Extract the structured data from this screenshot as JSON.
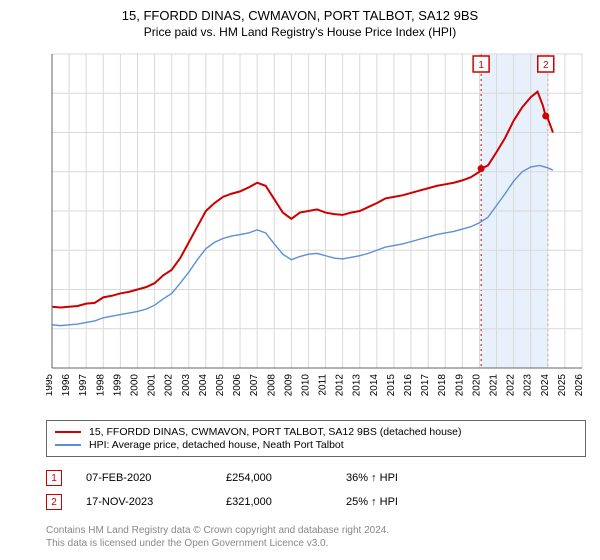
{
  "header": {
    "title": "15, FFORDD DINAS, CWMAVON, PORT TALBOT, SA12 9BS",
    "subtitle": "Price paid vs. HM Land Registry's House Price Index (HPI)"
  },
  "chart": {
    "type": "line",
    "background_color": "#ffffff",
    "grid_color": "#d9d9d9",
    "axis_color": "#666666",
    "font_size_axis": 10,
    "y_axis": {
      "min": 0,
      "max": 400000,
      "tick_step": 50000,
      "label_prefix": "£",
      "label_suffix": "K"
    },
    "x_axis": {
      "min": 1995,
      "max": 2026,
      "tick_step": 1
    },
    "highlight_band": {
      "x_start": 2020.1,
      "x_end": 2024.0,
      "fill": "#e8f0fb",
      "dash_color": "#cc0000"
    },
    "markers": [
      {
        "id": "1",
        "x": 2020.1,
        "y": 254000,
        "label": "1"
      },
      {
        "id": "2",
        "x": 2023.88,
        "y": 321000,
        "label": "2"
      }
    ],
    "marker_badge_border": "#cc0000",
    "marker_badge_text": "#cc0000",
    "series": [
      {
        "name": "price_paid",
        "color": "#cc0000",
        "line_width": 2,
        "data": [
          [
            1995,
            78000
          ],
          [
            1995.5,
            77000
          ],
          [
            1996,
            78000
          ],
          [
            1996.5,
            79000
          ],
          [
            1997,
            82000
          ],
          [
            1997.5,
            83000
          ],
          [
            1998,
            90000
          ],
          [
            1998.5,
            92000
          ],
          [
            1999,
            95000
          ],
          [
            1999.5,
            97000
          ],
          [
            2000,
            100000
          ],
          [
            2000.5,
            103000
          ],
          [
            2001,
            108000
          ],
          [
            2001.5,
            118000
          ],
          [
            2002,
            125000
          ],
          [
            2002.5,
            140000
          ],
          [
            2003,
            160000
          ],
          [
            2003.5,
            180000
          ],
          [
            2004,
            200000
          ],
          [
            2004.5,
            210000
          ],
          [
            2005,
            218000
          ],
          [
            2005.5,
            222000
          ],
          [
            2006,
            225000
          ],
          [
            2006.5,
            230000
          ],
          [
            2007,
            236000
          ],
          [
            2007.5,
            232000
          ],
          [
            2008,
            215000
          ],
          [
            2008.5,
            198000
          ],
          [
            2009,
            190000
          ],
          [
            2009.5,
            198000
          ],
          [
            2010,
            200000
          ],
          [
            2010.5,
            202000
          ],
          [
            2011,
            198000
          ],
          [
            2011.5,
            196000
          ],
          [
            2012,
            195000
          ],
          [
            2012.5,
            198000
          ],
          [
            2013,
            200000
          ],
          [
            2013.5,
            205000
          ],
          [
            2014,
            210000
          ],
          [
            2014.5,
            216000
          ],
          [
            2015,
            218000
          ],
          [
            2015.5,
            220000
          ],
          [
            2016,
            223000
          ],
          [
            2016.5,
            226000
          ],
          [
            2017,
            229000
          ],
          [
            2017.5,
            232000
          ],
          [
            2018,
            234000
          ],
          [
            2018.5,
            236000
          ],
          [
            2019,
            239000
          ],
          [
            2019.5,
            243000
          ],
          [
            2020,
            250000
          ],
          [
            2020.1,
            254000
          ],
          [
            2020.5,
            258000
          ],
          [
            2021,
            275000
          ],
          [
            2021.5,
            293000
          ],
          [
            2022,
            315000
          ],
          [
            2022.5,
            332000
          ],
          [
            2023,
            345000
          ],
          [
            2023.4,
            352000
          ],
          [
            2023.7,
            335000
          ],
          [
            2023.88,
            321000
          ],
          [
            2024,
            318000
          ],
          [
            2024.3,
            300000
          ]
        ]
      },
      {
        "name": "hpi",
        "color": "#5b8fd6",
        "line_width": 1.4,
        "data": [
          [
            1995,
            55000
          ],
          [
            1995.5,
            54000
          ],
          [
            1996,
            55000
          ],
          [
            1996.5,
            56000
          ],
          [
            1997,
            58000
          ],
          [
            1997.5,
            60000
          ],
          [
            1998,
            64000
          ],
          [
            1998.5,
            66000
          ],
          [
            1999,
            68000
          ],
          [
            1999.5,
            70000
          ],
          [
            2000,
            72000
          ],
          [
            2000.5,
            75000
          ],
          [
            2001,
            80000
          ],
          [
            2001.5,
            88000
          ],
          [
            2002,
            95000
          ],
          [
            2002.5,
            108000
          ],
          [
            2003,
            122000
          ],
          [
            2003.5,
            138000
          ],
          [
            2004,
            152000
          ],
          [
            2004.5,
            160000
          ],
          [
            2005,
            165000
          ],
          [
            2005.5,
            168000
          ],
          [
            2006,
            170000
          ],
          [
            2006.5,
            172000
          ],
          [
            2007,
            176000
          ],
          [
            2007.5,
            172000
          ],
          [
            2008,
            158000
          ],
          [
            2008.5,
            145000
          ],
          [
            2009,
            138000
          ],
          [
            2009.5,
            142000
          ],
          [
            2010,
            145000
          ],
          [
            2010.5,
            146000
          ],
          [
            2011,
            143000
          ],
          [
            2011.5,
            140000
          ],
          [
            2012,
            139000
          ],
          [
            2012.5,
            141000
          ],
          [
            2013,
            143000
          ],
          [
            2013.5,
            146000
          ],
          [
            2014,
            150000
          ],
          [
            2014.5,
            154000
          ],
          [
            2015,
            156000
          ],
          [
            2015.5,
            158000
          ],
          [
            2016,
            161000
          ],
          [
            2016.5,
            164000
          ],
          [
            2017,
            167000
          ],
          [
            2017.5,
            170000
          ],
          [
            2018,
            172000
          ],
          [
            2018.5,
            174000
          ],
          [
            2019,
            177000
          ],
          [
            2019.5,
            180000
          ],
          [
            2020,
            185000
          ],
          [
            2020.5,
            192000
          ],
          [
            2021,
            207000
          ],
          [
            2021.5,
            222000
          ],
          [
            2022,
            238000
          ],
          [
            2022.5,
            250000
          ],
          [
            2023,
            256000
          ],
          [
            2023.5,
            258000
          ],
          [
            2024,
            255000
          ],
          [
            2024.3,
            252000
          ]
        ]
      }
    ]
  },
  "legend": {
    "items": [
      {
        "color": "#cc0000",
        "label": "15, FFORDD DINAS, CWMAVON, PORT TALBOT, SA12 9BS (detached house)"
      },
      {
        "color": "#5b8fd6",
        "label": "HPI: Average price, detached house, Neath Port Talbot"
      }
    ]
  },
  "marker_rows": [
    {
      "badge": "1",
      "date": "07-FEB-2020",
      "price": "£254,000",
      "pct": "36% ↑ HPI"
    },
    {
      "badge": "2",
      "date": "17-NOV-2023",
      "price": "£321,000",
      "pct": "25% ↑ HPI"
    }
  ],
  "footer": {
    "line1": "Contains HM Land Registry data © Crown copyright and database right 2024.",
    "line2": "This data is licensed under the Open Government Licence v3.0."
  }
}
